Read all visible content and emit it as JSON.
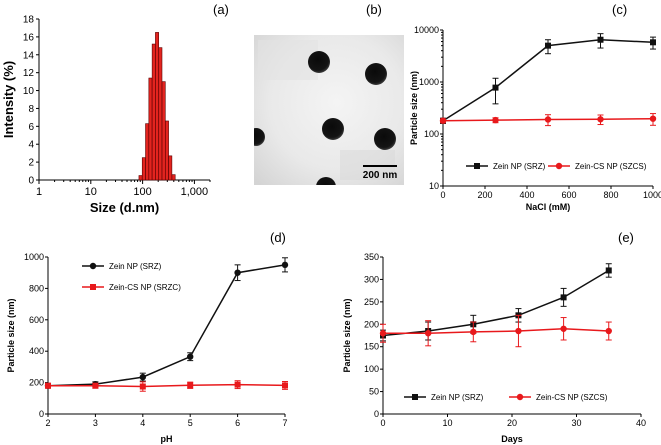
{
  "colors": {
    "black": "#111111",
    "red": "#e8191c",
    "bar_fill": "#e3241f",
    "bar_stroke": "#5a0000"
  },
  "panels": {
    "a": {
      "label": "(a)"
    },
    "b": {
      "label": "(b)",
      "scalebar": "200 nm"
    },
    "c": {
      "label": "(c)"
    },
    "d": {
      "label": "(d)"
    },
    "e": {
      "label": "(e)"
    }
  },
  "chart_data": [
    {
      "panel": "a",
      "type": "bar",
      "title": "",
      "xlabel": "Size (d.nm)",
      "ylabel": "Intensity (%)",
      "xscale": "log",
      "xlim": [
        1,
        2000
      ],
      "ylim": [
        0,
        18
      ],
      "xticks": [
        1,
        10,
        100,
        1000
      ],
      "xtick_labels": [
        "1",
        "10",
        "100",
        "1,000"
      ],
      "yticks": [
        0,
        2,
        4,
        6,
        8,
        10,
        12,
        14,
        16,
        18
      ],
      "bins": [
        {
          "x": 91.3,
          "value": 0.5
        },
        {
          "x": 105.7,
          "value": 2.5
        },
        {
          "x": 122.4,
          "value": 6.3
        },
        {
          "x": 141.8,
          "value": 11.4
        },
        {
          "x": 164.2,
          "value": 15.2
        },
        {
          "x": 190.1,
          "value": 16.5
        },
        {
          "x": 220.2,
          "value": 14.8
        },
        {
          "x": 255.0,
          "value": 11.0
        },
        {
          "x": 295.3,
          "value": 6.6
        },
        {
          "x": 342.0,
          "value": 2.7
        },
        {
          "x": 396.1,
          "value": 0.6
        }
      ]
    },
    {
      "panel": "c",
      "type": "line",
      "xlabel": "NaCl (mM)",
      "ylabel": "Particle size (nm)",
      "yscale": "log",
      "xlim": [
        0,
        1000
      ],
      "ylim": [
        10,
        10000
      ],
      "xticks": [
        0,
        200,
        400,
        600,
        800,
        1000
      ],
      "yticks": [
        10,
        100,
        1000,
        10000
      ],
      "legend_position": "bottom",
      "series": [
        {
          "name": "Zein NP (SRZ)",
          "color_key": "black",
          "marker": "square",
          "x": [
            0,
            250,
            500,
            750,
            1000
          ],
          "y": [
            180,
            780,
            5000,
            6500,
            5800
          ],
          "err": [
            20,
            400,
            1500,
            2000,
            1500
          ]
        },
        {
          "name": "Zein-CS NP (SZCS)",
          "color_key": "red",
          "marker": "circle",
          "x": [
            0,
            250,
            500,
            750,
            1000
          ],
          "y": [
            180,
            185,
            190,
            192,
            197
          ],
          "err": [
            15,
            20,
            45,
            40,
            50
          ]
        }
      ]
    },
    {
      "panel": "d",
      "type": "line",
      "xlabel": "pH",
      "ylabel": "Particle size (nm)",
      "xlim": [
        2,
        7
      ],
      "ylim": [
        0,
        1000
      ],
      "xticks": [
        2,
        3,
        4,
        5,
        6,
        7
      ],
      "yticks": [
        0,
        200,
        400,
        600,
        800,
        1000
      ],
      "legend_position": "top-left",
      "series": [
        {
          "name": "Zein NP (SRZ)",
          "color_key": "black",
          "marker": "circle",
          "x": [
            2,
            3,
            4,
            5,
            6,
            7
          ],
          "y": [
            180,
            190,
            235,
            365,
            900,
            950
          ],
          "err": [
            15,
            15,
            25,
            25,
            50,
            45
          ]
        },
        {
          "name": "Zein-CS NP (SRZC)",
          "color_key": "red",
          "marker": "square",
          "x": [
            2,
            3,
            4,
            5,
            6,
            7
          ],
          "y": [
            180,
            180,
            175,
            183,
            187,
            182
          ],
          "err": [
            15,
            15,
            30,
            20,
            25,
            25
          ]
        }
      ]
    },
    {
      "panel": "e",
      "type": "line",
      "xlabel": "Days",
      "ylabel": "Particle size (nm)",
      "xlim": [
        0,
        40
      ],
      "ylim": [
        0,
        350
      ],
      "xticks": [
        0,
        10,
        20,
        30,
        40
      ],
      "yticks": [
        0,
        50,
        100,
        150,
        200,
        250,
        300,
        350
      ],
      "legend_position": "bottom",
      "series": [
        {
          "name": "Zein NP (SRZ)",
          "color_key": "black",
          "marker": "square",
          "x": [
            0,
            7,
            14,
            21,
            28,
            35
          ],
          "y": [
            175,
            185,
            200,
            220,
            260,
            320
          ],
          "err": [
            12,
            20,
            20,
            15,
            20,
            15
          ]
        },
        {
          "name": "Zein-CS NP (SZCS)",
          "color_key": "red",
          "marker": "circle",
          "x": [
            0,
            7,
            14,
            21,
            28,
            35
          ],
          "y": [
            180,
            180,
            183,
            185,
            190,
            185
          ],
          "err": [
            20,
            28,
            22,
            35,
            25,
            20
          ]
        }
      ]
    }
  ]
}
